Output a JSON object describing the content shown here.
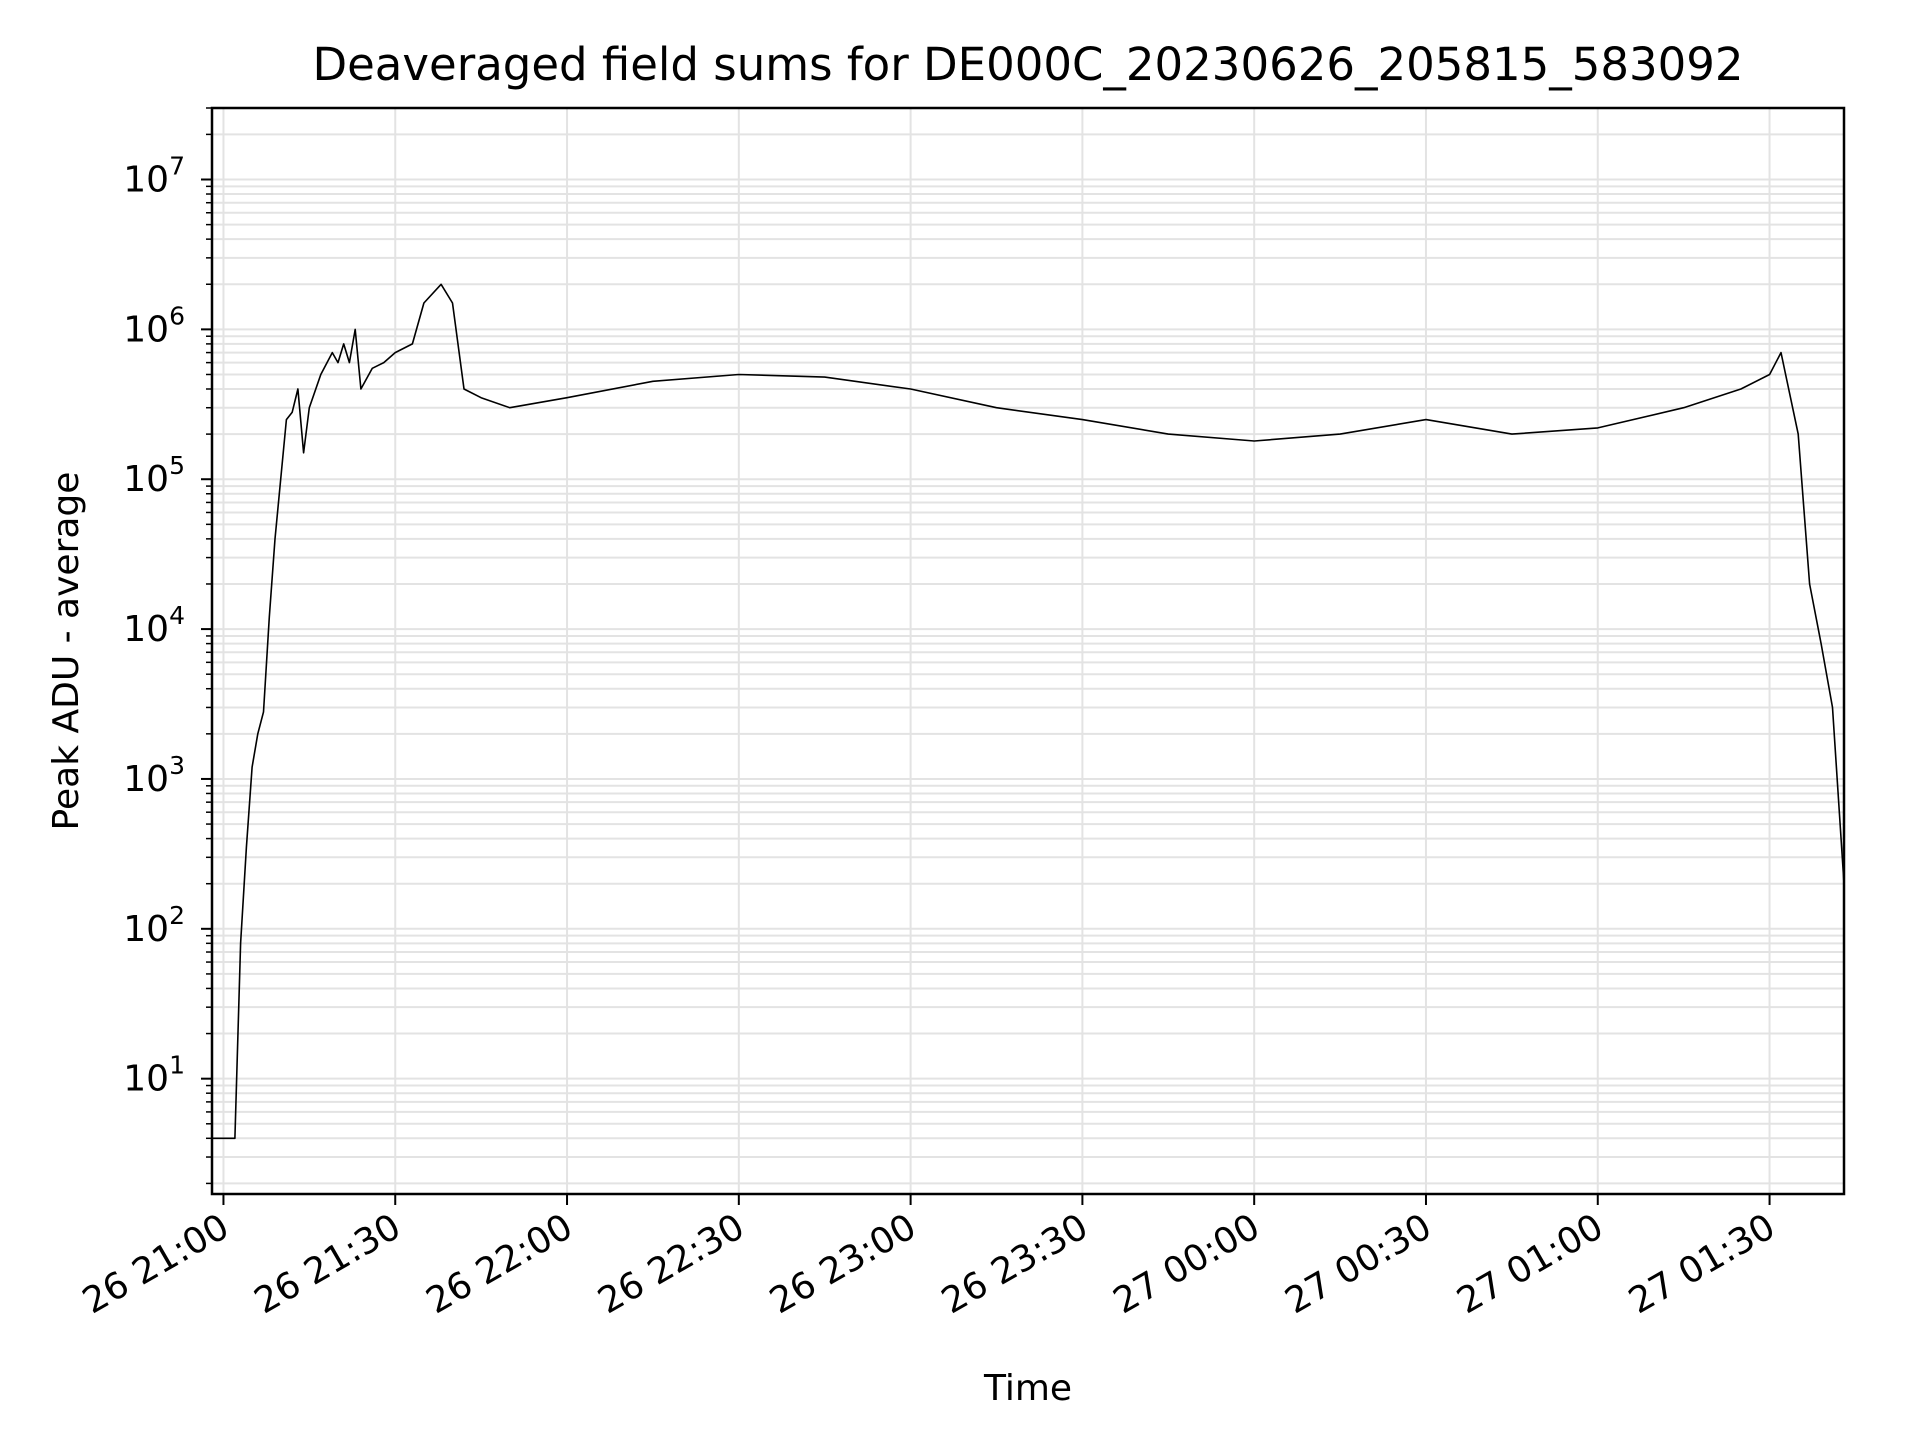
{
  "chart_data": {
    "type": "line",
    "title": "Deaveraged field sums for DE000C_20230626_205815_583092",
    "xlabel": "Time",
    "ylabel": "Peak ADU - average",
    "yscale": "log",
    "ylim": [
      1.7,
      30000000
    ],
    "xlim": [
      "2023-06-26 20:58",
      "2023-06-27 01:43"
    ],
    "grid": true,
    "line_color": "#000000",
    "grid_color": "#e3e3e3",
    "x_ticks": [
      "26 21:00",
      "26 21:30",
      "26 22:00",
      "26 22:30",
      "26 23:00",
      "26 23:30",
      "27 00:00",
      "27 00:30",
      "27 01:00",
      "27 01:30"
    ],
    "y_ticks": [
      {
        "base": "10",
        "exp": "1",
        "value": 10
      },
      {
        "base": "10",
        "exp": "2",
        "value": 100
      },
      {
        "base": "10",
        "exp": "3",
        "value": 1000
      },
      {
        "base": "10",
        "exp": "4",
        "value": 10000
      },
      {
        "base": "10",
        "exp": "5",
        "value": 100000
      },
      {
        "base": "10",
        "exp": "6",
        "value": 1000000
      },
      {
        "base": "10",
        "exp": "7",
        "value": 10000000
      }
    ],
    "series": [
      {
        "x": [
          "2023-06-26 20:58",
          "2023-06-26 21:01",
          "2023-06-26 21:02",
          "2023-06-26 21:03",
          "2023-06-26 21:04",
          "2023-06-26 21:05",
          "2023-06-26 21:06",
          "2023-06-26 21:07",
          "2023-06-26 21:08",
          "2023-06-26 21:09",
          "2023-06-26 21:10",
          "2023-06-26 21:11",
          "2023-06-26 21:12",
          "2023-06-26 21:13",
          "2023-06-26 21:14",
          "2023-06-26 21:15",
          "2023-06-26 21:17",
          "2023-06-26 21:19",
          "2023-06-26 21:20",
          "2023-06-26 21:21",
          "2023-06-26 21:22",
          "2023-06-26 21:23",
          "2023-06-26 21:24",
          "2023-06-26 21:26",
          "2023-06-26 21:28",
          "2023-06-26 21:30",
          "2023-06-26 21:33",
          "2023-06-26 21:35",
          "2023-06-26 21:38",
          "2023-06-26 21:40",
          "2023-06-26 21:42",
          "2023-06-26 21:45",
          "2023-06-26 21:50",
          "2023-06-26 22:00",
          "2023-06-26 22:15",
          "2023-06-26 22:30",
          "2023-06-26 22:45",
          "2023-06-26 23:00",
          "2023-06-26 23:15",
          "2023-06-26 23:30",
          "2023-06-26 23:45",
          "2023-06-27 00:00",
          "2023-06-27 00:15",
          "2023-06-27 00:30",
          "2023-06-27 00:45",
          "2023-06-27 01:00",
          "2023-06-27 01:15",
          "2023-06-27 01:25",
          "2023-06-27 01:30",
          "2023-06-27 01:32",
          "2023-06-27 01:35",
          "2023-06-27 01:37",
          "2023-06-27 01:39",
          "2023-06-27 01:41",
          "2023-06-27 01:43"
        ],
        "y": [
          4,
          4,
          4,
          80,
          350,
          1200,
          2000,
          2800,
          12000,
          40000,
          100000,
          250000,
          280000,
          400000,
          150000,
          300000,
          500000,
          700000,
          600000,
          800000,
          600000,
          1000000,
          400000,
          550000,
          600000,
          700000,
          800000,
          1500000,
          2000000,
          1500000,
          400000,
          350000,
          300000,
          350000,
          450000,
          500000,
          480000,
          400000,
          300000,
          250000,
          200000,
          180000,
          200000,
          250000,
          200000,
          220000,
          300000,
          400000,
          500000,
          700000,
          200000,
          20000,
          8000,
          3000,
          200
        ]
      }
    ]
  }
}
